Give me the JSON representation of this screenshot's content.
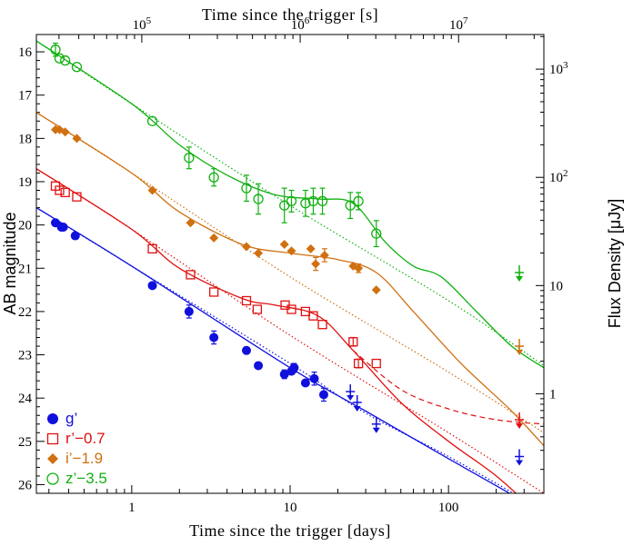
{
  "chart_data": {
    "type": "scatter",
    "title": "",
    "xlabel": "Time since the trigger [days]",
    "ylabel": "AB magnitude",
    "top_xlabel": "Time since the trigger [s]",
    "right_ylabel": "Flux Density [μJy]",
    "x_scale": "log",
    "xlim": [
      0.25,
      400
    ],
    "ylim": [
      26.2,
      15.6
    ],
    "x_ticklabels": [
      "1",
      "10",
      "100"
    ],
    "y_ticklabels": [
      "16",
      "17",
      "18",
      "19",
      "20",
      "21",
      "22",
      "23",
      "24",
      "25",
      "26"
    ],
    "top_ticks": [
      {
        "base": "10",
        "exp": "5",
        "value": 100000
      },
      {
        "base": "10",
        "exp": "6",
        "value": 1000000
      },
      {
        "base": "10",
        "exp": "7",
        "value": 10000000
      }
    ],
    "right_ticks": [
      {
        "base": "10",
        "exp": "3",
        "value": 1000
      },
      {
        "base": "10",
        "exp": "2",
        "value": 100
      },
      {
        "base": "",
        "exp": "",
        "label": "10",
        "value": 10
      },
      {
        "base": "",
        "exp": "",
        "label": "1",
        "value": 1
      }
    ],
    "legend_position": "bottom-left",
    "series": [
      {
        "name": "g’",
        "color": "#1010dd",
        "marker": "filled-circle",
        "points": [
          [
            0.33,
            19.95
          ],
          [
            0.36,
            20.05
          ],
          [
            0.37,
            20.05
          ],
          [
            0.44,
            20.25
          ],
          [
            1.35,
            21.4
          ],
          [
            2.3,
            22.0
          ],
          [
            3.3,
            22.6
          ],
          [
            5.3,
            22.9
          ],
          [
            6.3,
            23.25
          ],
          [
            9.2,
            23.45
          ],
          [
            10.2,
            23.38
          ],
          [
            10.6,
            23.3
          ],
          [
            12.5,
            23.65
          ],
          [
            14.2,
            23.55
          ],
          [
            16.3,
            23.92
          ]
        ],
        "errors": [
          0,
          0,
          0,
          0,
          0,
          0.15,
          0.15,
          0,
          0,
          0.1,
          0,
          0.1,
          0,
          0.15,
          0.15
        ],
        "upper_limits": [
          [
            24.0,
            23.85
          ],
          [
            26.5,
            24.1
          ],
          [
            35.0,
            24.6
          ],
          [
            280.0,
            25.35
          ]
        ],
        "model_solid": [
          [
            0.25,
            19.6
          ],
          [
            1,
            20.95
          ],
          [
            10,
            23.3
          ],
          [
            30,
            24.3
          ],
          [
            100,
            25.4
          ],
          [
            400,
            26.65
          ]
        ],
        "model_dotted": [
          [
            0.25,
            19.6
          ],
          [
            1,
            20.95
          ],
          [
            10,
            23.2
          ],
          [
            30,
            24.35
          ],
          [
            100,
            25.35
          ],
          [
            400,
            26.6
          ]
        ]
      },
      {
        "name": "r’−0.7",
        "color": "#e01010",
        "marker": "open-square",
        "points": [
          [
            0.33,
            19.1
          ],
          [
            0.35,
            19.2
          ],
          [
            0.38,
            19.25
          ],
          [
            0.45,
            19.35
          ],
          [
            1.35,
            20.55
          ],
          [
            2.35,
            21.15
          ],
          [
            3.3,
            21.55
          ],
          [
            5.3,
            21.75
          ],
          [
            6.2,
            21.95
          ],
          [
            9.3,
            21.85
          ],
          [
            10.2,
            21.95
          ],
          [
            12.5,
            22.0
          ],
          [
            14.0,
            22.1
          ],
          [
            16.0,
            22.3
          ],
          [
            25.0,
            22.7
          ],
          [
            27.0,
            23.2
          ],
          [
            35.0,
            23.2
          ]
        ],
        "errors": [
          0,
          0,
          0,
          0,
          0,
          0,
          0,
          0,
          0,
          0,
          0,
          0,
          0,
          0,
          0.1,
          0.1,
          0
        ],
        "upper_limits": [
          [
            280.0,
            24.5
          ]
        ],
        "model_solid": [
          [
            0.25,
            18.7
          ],
          [
            1,
            20.1
          ],
          [
            2,
            21.0
          ],
          [
            5,
            21.7
          ],
          [
            8,
            21.85
          ],
          [
            15,
            22.1
          ],
          [
            25,
            22.9
          ],
          [
            50,
            24.1
          ],
          [
            100,
            25.0
          ],
          [
            200,
            25.8
          ],
          [
            400,
            26.8
          ]
        ],
        "model_dashed": [
          [
            25,
            22.9
          ],
          [
            50,
            23.8
          ],
          [
            100,
            24.25
          ],
          [
            200,
            24.5
          ],
          [
            400,
            24.6
          ]
        ],
        "model_dotted": [
          [
            0.25,
            18.7
          ],
          [
            1,
            20.1
          ],
          [
            10,
            22.55
          ],
          [
            100,
            24.8
          ],
          [
            400,
            26.2
          ]
        ]
      },
      {
        "name": "i’−1.9",
        "color": "#d07010",
        "marker": "filled-diamond",
        "points": [
          [
            0.33,
            17.8
          ],
          [
            0.35,
            17.8
          ],
          [
            0.38,
            17.85
          ],
          [
            0.45,
            18.0
          ],
          [
            1.35,
            19.2
          ],
          [
            2.35,
            19.95
          ],
          [
            3.3,
            20.3
          ],
          [
            5.3,
            20.5
          ],
          [
            6.3,
            20.65
          ],
          [
            9.2,
            20.45
          ],
          [
            10.2,
            20.6
          ],
          [
            13.5,
            20.55
          ],
          [
            14.5,
            20.9
          ],
          [
            16.5,
            20.7
          ],
          [
            25.0,
            20.95
          ],
          [
            27.0,
            21.0
          ],
          [
            35.0,
            21.5
          ]
        ],
        "errors": [
          0,
          0,
          0,
          0,
          0,
          0,
          0,
          0,
          0,
          0,
          0,
          0,
          0.15,
          0.15,
          0,
          0.1,
          0
        ],
        "upper_limits": [
          [
            280.0,
            22.8
          ]
        ],
        "model_solid": [
          [
            0.25,
            17.4
          ],
          [
            1,
            18.8
          ],
          [
            2,
            19.7
          ],
          [
            5,
            20.45
          ],
          [
            10,
            20.65
          ],
          [
            20,
            20.8
          ],
          [
            35,
            21.1
          ],
          [
            60,
            22.0
          ],
          [
            120,
            23.2
          ],
          [
            250,
            24.3
          ],
          [
            400,
            25.1
          ]
        ],
        "model_dotted": [
          [
            0.25,
            17.4
          ],
          [
            1,
            18.8
          ],
          [
            10,
            21.2
          ],
          [
            100,
            23.4
          ],
          [
            400,
            24.8
          ]
        ]
      },
      {
        "name": "z’−3.5",
        "color": "#10b010",
        "marker": "open-circle",
        "points": [
          [
            0.33,
            15.95
          ],
          [
            0.35,
            16.15
          ],
          [
            0.38,
            16.2
          ],
          [
            0.45,
            16.35
          ],
          [
            1.35,
            17.6
          ],
          [
            2.3,
            18.45
          ],
          [
            3.3,
            18.9
          ],
          [
            5.3,
            19.15
          ],
          [
            6.3,
            19.4
          ],
          [
            9.2,
            19.55
          ],
          [
            10.2,
            19.45
          ],
          [
            12.5,
            19.5
          ],
          [
            14.0,
            19.45
          ],
          [
            16.0,
            19.45
          ],
          [
            24.0,
            19.55
          ],
          [
            27.0,
            19.45
          ],
          [
            35.0,
            20.2
          ]
        ],
        "errors": [
          0.15,
          0,
          0,
          0,
          0,
          0.25,
          0.2,
          0.3,
          0.35,
          0.4,
          0.25,
          0.3,
          0.3,
          0.3,
          0.3,
          0.2,
          0.3
        ],
        "upper_limits": [
          [
            280.0,
            21.1
          ]
        ],
        "model_solid": [
          [
            0.25,
            15.75
          ],
          [
            1,
            17.2
          ],
          [
            2,
            18.15
          ],
          [
            4,
            18.85
          ],
          [
            8,
            19.3
          ],
          [
            15,
            19.4
          ],
          [
            25,
            19.5
          ],
          [
            40,
            20.4
          ],
          [
            60,
            20.95
          ],
          [
            90,
            21.2
          ],
          [
            150,
            22.0
          ],
          [
            250,
            22.8
          ],
          [
            400,
            23.3
          ]
        ],
        "model_dotted": [
          [
            0.25,
            15.75
          ],
          [
            1,
            17.2
          ],
          [
            10,
            19.55
          ],
          [
            100,
            21.75
          ],
          [
            400,
            23.25
          ]
        ]
      }
    ]
  }
}
